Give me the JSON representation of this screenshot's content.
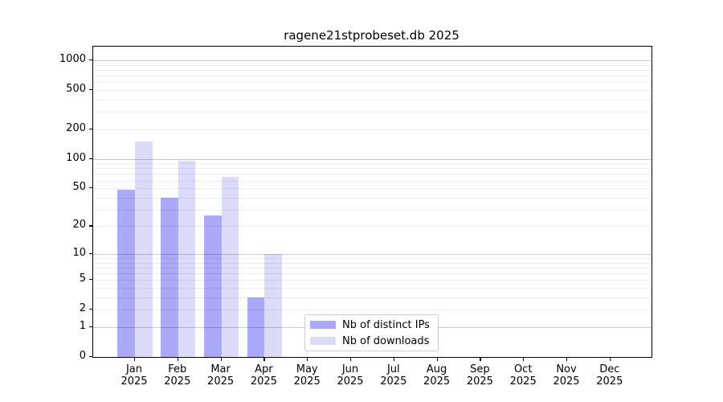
{
  "title": "ragene21stprobeset.db 2025",
  "chart_data": {
    "type": "bar",
    "title": "ragene21stprobeset.db 2025",
    "categories": [
      "Jan 2025",
      "Feb 2025",
      "Mar 2025",
      "Apr 2025",
      "May 2025",
      "Jun 2025",
      "Jul 2025",
      "Aug 2025",
      "Sep 2025",
      "Oct 2025",
      "Nov 2025",
      "Dec 2025"
    ],
    "months": [
      "Jan",
      "Feb",
      "Mar",
      "Apr",
      "May",
      "Jun",
      "Jul",
      "Aug",
      "Sep",
      "Oct",
      "Nov",
      "Dec"
    ],
    "year": "2025",
    "series": [
      {
        "name": "Nb of distinct IPs",
        "color": "#aaaaf8",
        "values": [
          48,
          40,
          26,
          3,
          0,
          0,
          0,
          0,
          0,
          0,
          0,
          0
        ]
      },
      {
        "name": "Nb of downloads",
        "color": "#dcdcfa",
        "values": [
          150,
          95,
          65,
          10,
          0,
          0,
          0,
          0,
          0,
          0,
          0,
          0
        ]
      }
    ],
    "yscale": "log1p",
    "ylim": [
      0,
      1376
    ],
    "yticks": [
      0,
      1,
      2,
      5,
      10,
      20,
      50,
      100,
      200,
      500,
      1000
    ],
    "major_grid_values": [
      1,
      10,
      100,
      1000
    ],
    "grid": true,
    "legend_position": "lower-center",
    "colors": {
      "major_grid": "#c9c9c9",
      "minor_grid": "#efefef",
      "axis": "#000000",
      "background": "#ffffff"
    }
  }
}
